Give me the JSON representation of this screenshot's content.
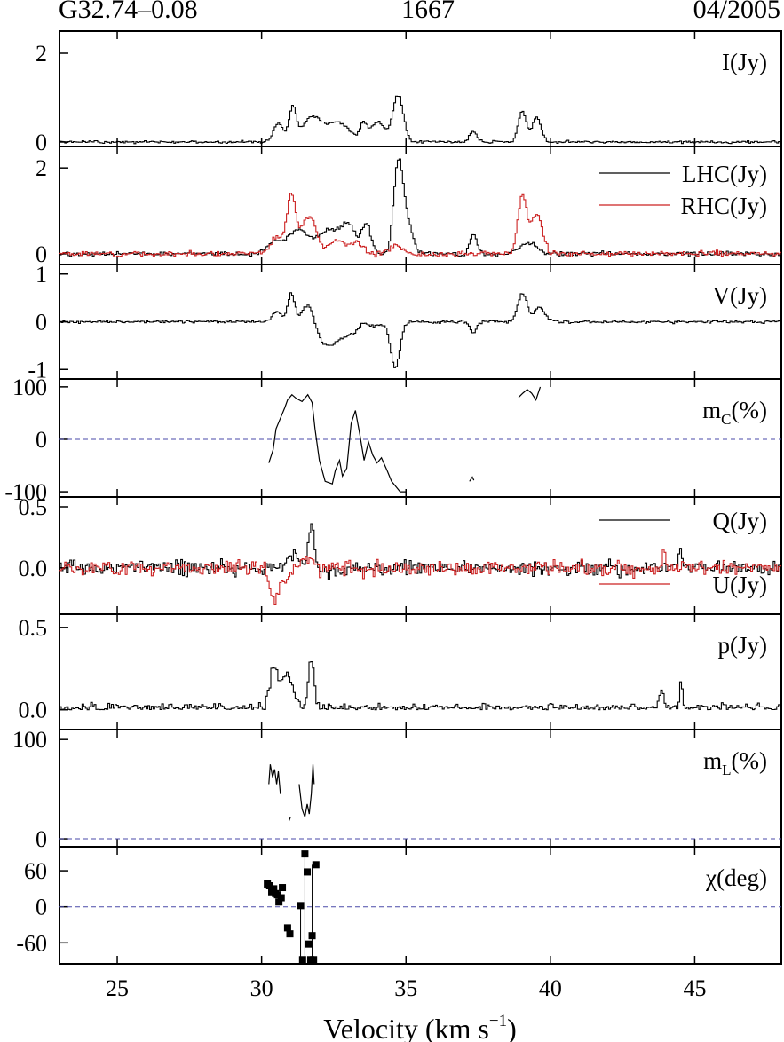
{
  "header": {
    "source": "G32.74–0.08",
    "frequency": "1667",
    "epoch": "04/2005"
  },
  "chart_data": {
    "type": "line",
    "x_axis": {
      "label": "Velocity (km s",
      "label_superscript": "−1",
      "label_close": ")",
      "range": [
        23,
        48
      ],
      "ticks": [
        25,
        30,
        35,
        40,
        45
      ],
      "tick_labels": [
        "25",
        "30",
        "35",
        "40",
        "45"
      ]
    },
    "grid": false,
    "colors": {
      "black": "#000000",
      "red": "#cc2222",
      "dash": "#4a4aa8"
    },
    "panels": [
      {
        "id": "I",
        "label": "I(Jy)",
        "ylim": [
          -0.1,
          2.5
        ],
        "yticks": [
          0,
          2
        ],
        "ytick_labels": [
          "0",
          "2"
        ],
        "series": [
          {
            "name": "I",
            "color": "#000000",
            "style": "step",
            "noise": 0.03,
            "seed": 1,
            "peaks": [
              [
                30.55,
                0.42,
                0.16
              ],
              [
                31.05,
                0.75,
                0.13
              ],
              [
                31.7,
                0.55,
                0.3
              ],
              [
                32.6,
                0.45,
                0.4
              ],
              [
                33.5,
                0.35,
                0.12
              ],
              [
                34.0,
                0.45,
                0.25
              ],
              [
                34.7,
                1.05,
                0.18
              ],
              [
                37.3,
                0.25,
                0.12
              ],
              [
                39.0,
                0.7,
                0.14
              ],
              [
                39.5,
                0.55,
                0.15
              ]
            ]
          }
        ]
      },
      {
        "id": "LR",
        "label": "",
        "ylim": [
          -0.25,
          2.5
        ],
        "yticks": [
          0,
          2
        ],
        "ytick_labels": [
          "0",
          "2"
        ],
        "legend": {
          "placement": "top-right",
          "entries": [
            {
              "text": "LHC(Jy)",
              "color": "#000000"
            },
            {
              "text": "RHC(Jy)",
              "color": "#cc2222"
            }
          ]
        },
        "series": [
          {
            "name": "LHC",
            "color": "#000000",
            "style": "step",
            "noise": 0.05,
            "seed": 2,
            "peaks": [
              [
                30.4,
                0.25,
                0.25
              ],
              [
                31.2,
                0.55,
                0.35
              ],
              [
                32.3,
                0.55,
                0.4
              ],
              [
                33.0,
                0.6,
                0.25
              ],
              [
                33.6,
                0.7,
                0.15
              ],
              [
                34.7,
                2.0,
                0.16
              ],
              [
                35.0,
                0.7,
                0.2
              ],
              [
                37.3,
                0.45,
                0.12
              ],
              [
                39.2,
                0.25,
                0.3
              ]
            ]
          },
          {
            "name": "RHC",
            "color": "#cc2222",
            "style": "step",
            "noise": 0.06,
            "seed": 3,
            "peaks": [
              [
                30.5,
                0.4,
                0.2
              ],
              [
                31.0,
                1.35,
                0.15
              ],
              [
                31.6,
                0.9,
                0.25
              ],
              [
                32.6,
                0.3,
                0.3
              ],
              [
                33.3,
                0.25,
                0.2
              ],
              [
                34.6,
                0.2,
                0.2
              ],
              [
                39.0,
                1.35,
                0.15
              ],
              [
                39.5,
                0.9,
                0.2
              ]
            ]
          }
        ]
      },
      {
        "id": "V",
        "label": "V(Jy)",
        "ylim": [
          -1.2,
          1.2
        ],
        "yticks": [
          1,
          0,
          -1
        ],
        "ytick_labels": [
          "1",
          "0",
          "-1"
        ],
        "series": [
          {
            "name": "V",
            "color": "#000000",
            "style": "step",
            "noise": 0.03,
            "seed": 4,
            "peaks": [
              [
                30.5,
                0.2,
                0.15
              ],
              [
                31.0,
                0.6,
                0.12
              ],
              [
                31.6,
                0.45,
                0.2
              ],
              [
                32.2,
                -0.4,
                0.35
              ],
              [
                33.0,
                -0.25,
                0.6
              ],
              [
                33.5,
                0.15,
                0.15
              ],
              [
                34.6,
                -0.95,
                0.16
              ],
              [
                37.3,
                -0.25,
                0.1
              ],
              [
                39.0,
                0.6,
                0.15
              ],
              [
                39.6,
                0.3,
                0.2
              ]
            ]
          }
        ]
      },
      {
        "id": "mC",
        "label": "m",
        "label_subscript": "C",
        "label_suffix": "(%)",
        "ylim": [
          -110,
          115
        ],
        "yticks": [
          100,
          0,
          -100
        ],
        "ytick_labels": [
          "100",
          "0",
          "-100"
        ],
        "zero_line": true,
        "series": [
          {
            "name": "mC",
            "color": "#000000",
            "style": "line",
            "segments": [
              [
                [
                  30.25,
                  -45
                ],
                [
                  30.4,
                  -20
                ],
                [
                  30.5,
                  20
                ],
                [
                  30.65,
                  40
                ],
                [
                  30.8,
                  60
                ],
                [
                  30.9,
                  75
                ],
                [
                  31.05,
                  85
                ],
                [
                  31.2,
                  78
                ],
                [
                  31.4,
                  72
                ],
                [
                  31.6,
                  85
                ],
                [
                  31.75,
                  70
                ],
                [
                  31.85,
                  20
                ],
                [
                  32.0,
                  -40
                ],
                [
                  32.2,
                  -80
                ],
                [
                  32.45,
                  -85
                ],
                [
                  32.55,
                  -60
                ],
                [
                  32.7,
                  -40
                ],
                [
                  32.8,
                  -70
                ],
                [
                  32.95,
                  -55
                ],
                [
                  33.1,
                  30
                ],
                [
                  33.25,
                  55
                ],
                [
                  33.4,
                  10
                ],
                [
                  33.55,
                  -40
                ],
                [
                  33.7,
                  -5
                ],
                [
                  33.85,
                  -30
                ],
                [
                  34.0,
                  -45
                ],
                [
                  34.15,
                  -35
                ],
                [
                  34.35,
                  -60
                ],
                [
                  34.5,
                  -80
                ],
                [
                  34.65,
                  -90
                ],
                [
                  34.8,
                  -100
                ],
                [
                  35.0,
                  -100
                ]
              ],
              [
                [
                  37.2,
                  -80
                ],
                [
                  37.3,
                  -72
                ],
                [
                  37.35,
                  -78
                ]
              ],
              [
                [
                  38.9,
                  80
                ],
                [
                  39.05,
                  88
                ],
                [
                  39.2,
                  95
                ],
                [
                  39.35,
                  88
                ],
                [
                  39.5,
                  75
                ],
                [
                  39.65,
                  100
                ]
              ]
            ]
          }
        ]
      },
      {
        "id": "QU",
        "label": "",
        "ylim": [
          -0.38,
          0.58
        ],
        "yticks": [
          0.5,
          0.0
        ],
        "ytick_labels": [
          "0.5",
          "0.0"
        ],
        "legend": {
          "placement": "right",
          "entries": [
            {
              "text": "Q(Jy)",
              "color": "#000000"
            },
            {
              "text": "U(Jy)",
              "color": "#cc2222"
            }
          ]
        },
        "series": [
          {
            "name": "Q",
            "color": "#000000",
            "style": "step",
            "noise": 0.06,
            "seed": 5,
            "peaks": [
              [
                31.1,
                0.12,
                0.2
              ],
              [
                31.7,
                0.35,
                0.1
              ],
              [
                32.4,
                -0.05,
                0.3
              ],
              [
                44.5,
                0.15,
                0.06
              ]
            ]
          },
          {
            "name": "U",
            "color": "#cc2222",
            "style": "step",
            "noise": 0.06,
            "seed": 6,
            "peaks": [
              [
                30.4,
                -0.25,
                0.15
              ],
              [
                30.8,
                -0.12,
                0.15
              ],
              [
                31.5,
                0.12,
                0.15
              ],
              [
                43.9,
                0.12,
                0.06
              ]
            ]
          }
        ]
      },
      {
        "id": "p",
        "label": "p(Jy)",
        "ylim": [
          -0.12,
          0.58
        ],
        "yticks": [
          0.5,
          0.0
        ],
        "ytick_labels": [
          "0.5",
          "0.0"
        ],
        "series": [
          {
            "name": "p",
            "color": "#000000",
            "style": "step",
            "noise": 0.035,
            "seed": 7,
            "abs": true,
            "peaks": [
              [
                30.4,
                0.25,
                0.15
              ],
              [
                30.9,
                0.22,
                0.2
              ],
              [
                31.7,
                0.3,
                0.1
              ],
              [
                43.8,
                0.12,
                0.08
              ],
              [
                44.5,
                0.18,
                0.05
              ]
            ]
          }
        ]
      },
      {
        "id": "mL",
        "label": "m",
        "label_subscript": "L",
        "label_suffix": "(%)",
        "ylim": [
          -8,
          110
        ],
        "yticks": [
          100,
          0
        ],
        "ytick_labels": [
          "100",
          "0"
        ],
        "zero_line": true,
        "series": [
          {
            "name": "mL",
            "color": "#000000",
            "style": "line",
            "segments": [
              [
                [
                  30.25,
                  55
                ],
                [
                  30.3,
                  75
                ],
                [
                  30.38,
                  62
                ],
                [
                  30.45,
                  70
                ],
                [
                  30.52,
                  55
                ],
                [
                  30.58,
                  68
                ],
                [
                  30.65,
                  45
                ]
              ],
              [
                [
                  30.95,
                  18
                ],
                [
                  31.0,
                  22
                ]
              ],
              [
                [
                  31.3,
                  55
                ],
                [
                  31.4,
                  30
                ],
                [
                  31.5,
                  22
                ],
                [
                  31.58,
                  35
                ],
                [
                  31.65,
                  25
                ],
                [
                  31.72,
                  45
                ],
                [
                  31.78,
                  75
                ],
                [
                  31.82,
                  55
                ]
              ]
            ]
          }
        ]
      },
      {
        "id": "chi",
        "label": "χ(deg)",
        "ylim": [
          -95,
          100
        ],
        "yticks": [
          60,
          0,
          -60
        ],
        "ytick_labels": [
          "60",
          "0",
          "-60"
        ],
        "zero_line": true,
        "series": [
          {
            "name": "chi",
            "color": "#000000",
            "style": "points",
            "points": [
              [
                30.2,
                38
              ],
              [
                30.28,
                35
              ],
              [
                30.35,
                25
              ],
              [
                30.42,
                30
              ],
              [
                30.48,
                22
              ],
              [
                30.55,
                20
              ],
              [
                30.6,
                8
              ],
              [
                30.68,
                15
              ],
              [
                30.72,
                32
              ],
              [
                30.9,
                -35
              ],
              [
                30.98,
                -45
              ],
              [
                31.35,
                2
              ],
              [
                31.42,
                -88
              ],
              [
                31.5,
                88
              ],
              [
                31.58,
                58
              ],
              [
                31.62,
                -62
              ],
              [
                31.7,
                -88
              ],
              [
                31.75,
                -48
              ],
              [
                31.8,
                -88
              ],
              [
                31.88,
                70
              ]
            ],
            "connectors": [
              [
                31.35,
                -88,
                31.35,
                5
              ],
              [
                31.5,
                -88,
                31.5,
                88
              ],
              [
                31.75,
                -88,
                31.75,
                70
              ]
            ]
          }
        ]
      }
    ]
  }
}
